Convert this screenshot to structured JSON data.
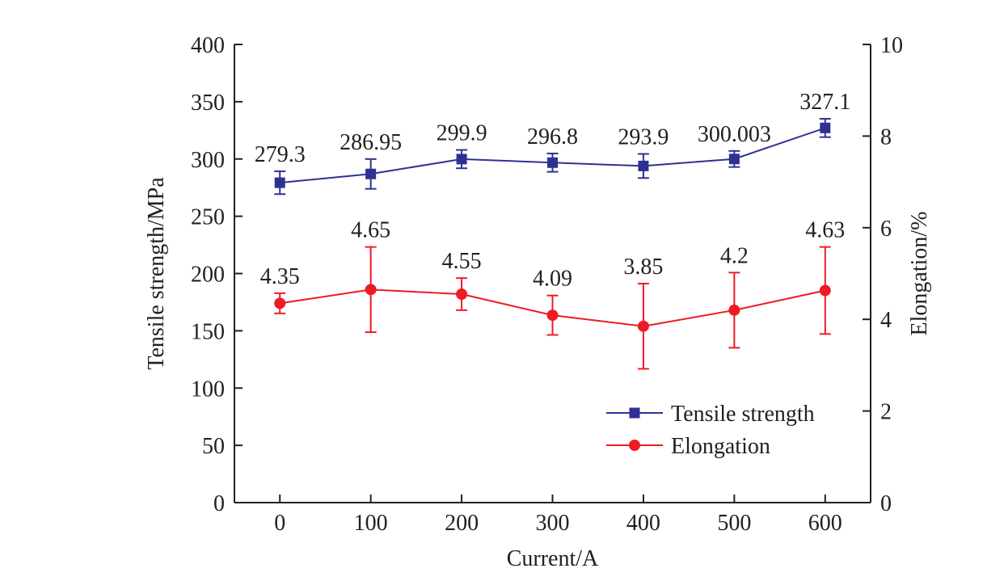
{
  "chart_data": {
    "type": "line",
    "title": "",
    "xlabel": "Current/A",
    "ylabel_left": "Tensile strength/MPa",
    "ylabel_right": "Elongation/%",
    "x": [
      0,
      100,
      200,
      300,
      400,
      500,
      600
    ],
    "x_ticks": [
      "0",
      "100",
      "200",
      "300",
      "400",
      "500",
      "600"
    ],
    "xlim": [
      -50,
      650
    ],
    "ylim_left": [
      0,
      400
    ],
    "yticks_left": [
      "0",
      "50",
      "100",
      "150",
      "200",
      "250",
      "300",
      "350",
      "400"
    ],
    "ylim_right": [
      0,
      10
    ],
    "yticks_right": [
      "0",
      "2",
      "4",
      "6",
      "8",
      "10"
    ],
    "grid": false,
    "legend_position": "lower-right",
    "series": [
      {
        "name": "Tensile strength",
        "axis": "left",
        "marker": "square",
        "color": "#2e3192",
        "values": [
          279.3,
          286.95,
          299.9,
          296.8,
          293.9,
          300.003,
          327.1
        ],
        "labels": [
          "279.3",
          "286.95",
          "299.9",
          "296.8",
          "293.9",
          "300.003",
          "327.1"
        ],
        "error": [
          10,
          13,
          8,
          8,
          10.5,
          7,
          8
        ]
      },
      {
        "name": "Elongation",
        "axis": "right",
        "marker": "circle",
        "color": "#ed1c24",
        "values": [
          4.35,
          4.65,
          4.55,
          4.09,
          3.85,
          4.2,
          4.63
        ],
        "labels": [
          "4.35",
          "4.65",
          "4.55",
          "4.09",
          "3.85",
          "4.2",
          "4.63"
        ],
        "error": [
          0.22,
          0.93,
          0.35,
          0.43,
          0.93,
          0.82,
          0.95
        ]
      }
    ]
  }
}
